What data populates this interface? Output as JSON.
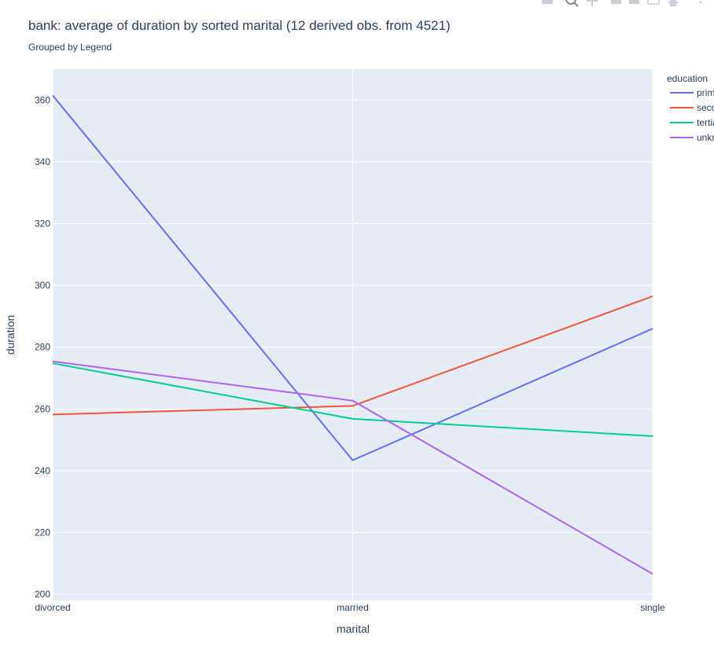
{
  "chart_data": {
    "type": "line",
    "title": "bank: average of duration  by sorted marital (12 derived obs. from 4521)",
    "subtitle": "Grouped by Legend",
    "xlabel": "marital",
    "ylabel": "duration",
    "categories": [
      "divorced",
      "married",
      "single"
    ],
    "ylim": [
      198,
      370
    ],
    "yticks": [
      200,
      220,
      240,
      260,
      280,
      300,
      320,
      340,
      360
    ],
    "grid": true,
    "legend": {
      "title": "education",
      "position": "top-right"
    },
    "series": [
      {
        "name": "primary",
        "color": "#636efa",
        "values": [
          361.5,
          243.4,
          286.0
        ]
      },
      {
        "name": "secondary",
        "color": "#ef553b",
        "values": [
          258.2,
          261.0,
          296.5
        ]
      },
      {
        "name": "tertiary",
        "color": "#00cc96",
        "values": [
          274.8,
          256.8,
          251.2
        ]
      },
      {
        "name": "unknown",
        "color": "#ab63fa",
        "values": [
          275.4,
          262.7,
          206.6
        ]
      }
    ],
    "colors": {
      "plot_bg": "#e5ecf6",
      "grid": "#ffffff",
      "text": "#2a3f5f"
    }
  },
  "modebar": {
    "icons": [
      "camera-icon",
      "zoom-icon",
      "pan-icon",
      "box-select-icon",
      "lasso-icon",
      "autoscale-icon",
      "home-icon",
      "more-icon"
    ]
  }
}
